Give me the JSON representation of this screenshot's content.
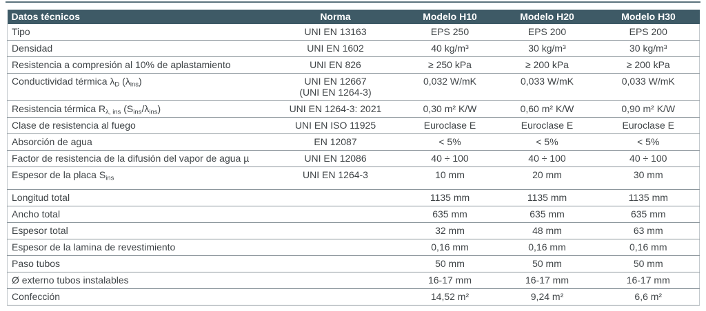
{
  "table": {
    "colors": {
      "header_bg": "#3e5a66",
      "header_text": "#ffffff",
      "body_text": "#3f4447",
      "row_line": "#8b959b",
      "side_border": "#c3c9cd",
      "top_rule": "#5c737d"
    },
    "header": {
      "datos": "Datos técnicos",
      "norma": "Norma",
      "models": [
        "Modelo H10",
        "Modelo H20",
        "Modelo H30"
      ]
    },
    "rows": [
      {
        "label": [
          "Tipo"
        ],
        "norma": [
          "UNI EN 13163"
        ],
        "values": [
          [
            "EPS 250"
          ],
          [
            "EPS 200"
          ],
          [
            "EPS 200"
          ]
        ]
      },
      {
        "label": [
          "Densidad"
        ],
        "norma": [
          "UNI EN 1602"
        ],
        "values": [
          [
            "40 kg/m³"
          ],
          [
            "30 kg/m³"
          ],
          [
            "30 kg/m³"
          ]
        ]
      },
      {
        "label": [
          "Resistencia a compresión al 10% de aplastamiento"
        ],
        "norma": [
          "UNI EN 826"
        ],
        "values": [
          [
            "≥ 250 kPa"
          ],
          [
            "≥ 200 kPa"
          ],
          [
            "≥ 200 kPa"
          ]
        ]
      },
      {
        "label": [
          "Conductividad térmica λ",
          {
            "sub": "D"
          },
          " (λ",
          {
            "sub": "ins"
          },
          ")"
        ],
        "norma": [
          "UNI EN 12667",
          {
            "br": true
          },
          "(UNI EN 1264-3)"
        ],
        "values": [
          [
            "0,032 W/mK"
          ],
          [
            "0,033 W/mK"
          ],
          [
            "0,033 W/mK"
          ]
        ]
      },
      {
        "label": [
          "Resistencia térmica R",
          {
            "sub": "λ, ins"
          },
          " (S",
          {
            "sub": "ins"
          },
          "/λ",
          {
            "sub": "ins"
          },
          ")"
        ],
        "norma": [
          "UNI EN 1264-3: 2021"
        ],
        "values": [
          [
            "0,30 m² K/W"
          ],
          [
            "0,60 m² K/W"
          ],
          [
            "0,90 m² K/W"
          ]
        ]
      },
      {
        "label": [
          "Clase de resistencia al fuego"
        ],
        "norma": [
          "UNI EN ISO 11925"
        ],
        "values": [
          [
            "Euroclase E"
          ],
          [
            "Euroclase E"
          ],
          [
            "Euroclase E"
          ]
        ]
      },
      {
        "label": [
          "Absorción de agua"
        ],
        "norma": [
          "EN 12087"
        ],
        "values": [
          [
            "< 5%"
          ],
          [
            "< 5%"
          ],
          [
            "< 5%"
          ]
        ]
      },
      {
        "label": [
          "Factor de resistencia de la difusión del vapor de agua  µ"
        ],
        "norma": [
          "UNI EN 12086"
        ],
        "values": [
          [
            "40 ÷ 100"
          ],
          [
            "40 ÷ 100"
          ],
          [
            "40 ÷ 100"
          ]
        ]
      },
      {
        "label": [
          "Espesor de la placa S",
          {
            "sub": "ins"
          }
        ],
        "norma": [
          "UNI EN 1264-3"
        ],
        "values": [
          [
            "10 mm"
          ],
          [
            "20 mm"
          ],
          [
            "30 mm"
          ]
        ],
        "gap_after": true
      },
      {
        "label": [
          "Longitud total"
        ],
        "norma": [],
        "values": [
          [
            "1135 mm"
          ],
          [
            "1135 mm"
          ],
          [
            "1135 mm"
          ]
        ]
      },
      {
        "label": [
          "Ancho total"
        ],
        "norma": [],
        "values": [
          [
            "635 mm"
          ],
          [
            "635 mm"
          ],
          [
            "635 mm"
          ]
        ]
      },
      {
        "label": [
          "Espesor total"
        ],
        "norma": [],
        "values": [
          [
            "32 mm"
          ],
          [
            "48 mm"
          ],
          [
            "63 mm"
          ]
        ]
      },
      {
        "label": [
          "Espesor de la lamina de revestimiento"
        ],
        "norma": [],
        "values": [
          [
            "0,16 mm"
          ],
          [
            "0,16 mm"
          ],
          [
            "0,16 mm"
          ]
        ]
      },
      {
        "label": [
          "Paso tubos"
        ],
        "norma": [],
        "values": [
          [
            "50 mm"
          ],
          [
            "50 mm"
          ],
          [
            "50 mm"
          ]
        ]
      },
      {
        "label": [
          "Ø externo tubos instalables"
        ],
        "norma": [],
        "values": [
          [
            "16-17 mm"
          ],
          [
            "16-17 mm"
          ],
          [
            "16-17 mm"
          ]
        ]
      },
      {
        "label": [
          "Confección"
        ],
        "norma": [],
        "values": [
          [
            "14,52 m²"
          ],
          [
            "9,24 m²"
          ],
          [
            "6,6 m²"
          ]
        ]
      }
    ]
  }
}
